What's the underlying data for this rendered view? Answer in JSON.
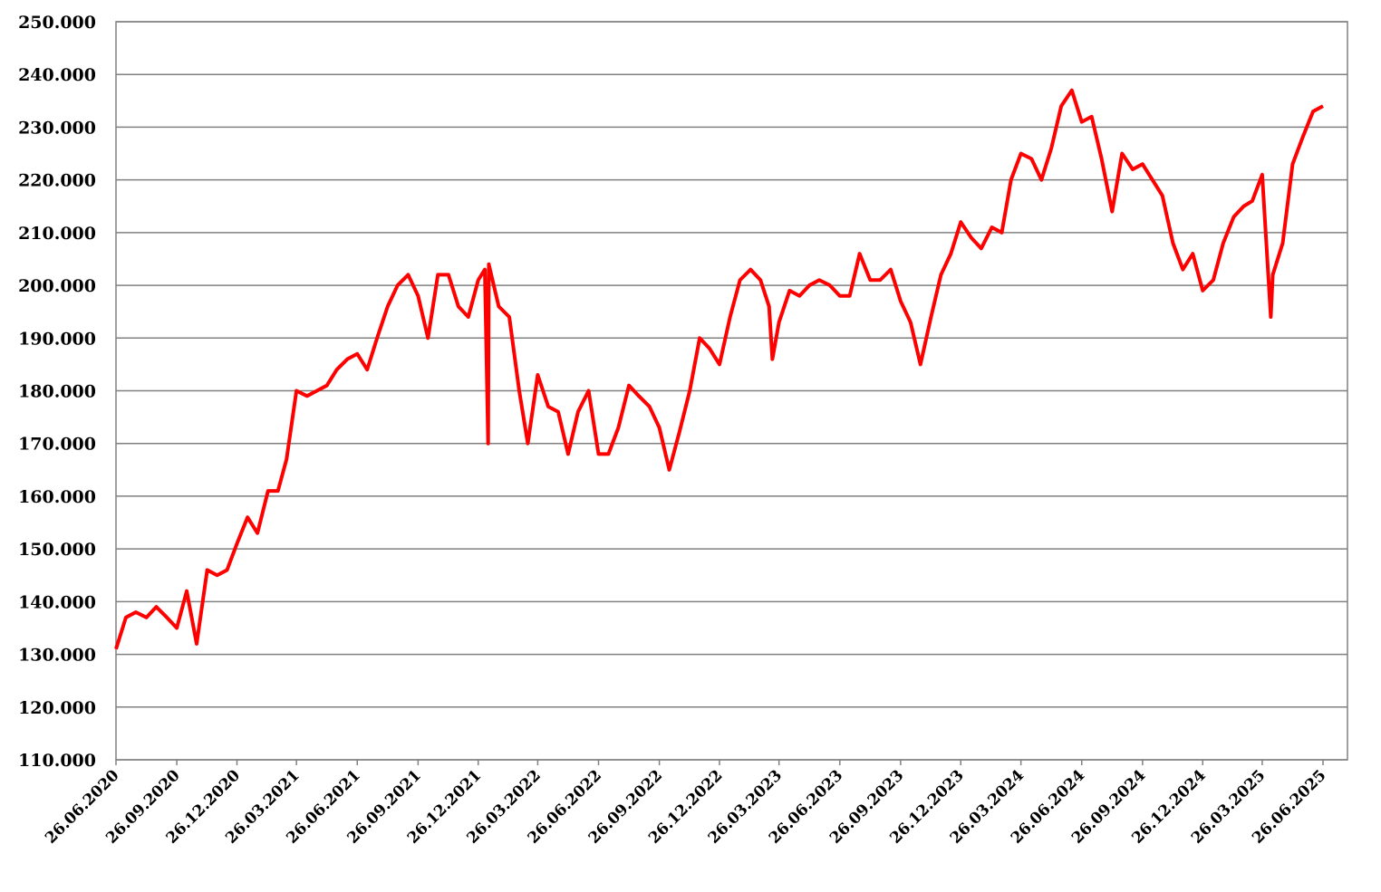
{
  "chart_data": {
    "type": "line",
    "x": [
      "26.06.2020",
      "11.07.2020",
      "26.07.2020",
      "11.08.2020",
      "26.08.2020",
      "11.09.2020",
      "26.09.2020",
      "11.10.2020",
      "26.10.2020",
      "11.11.2020",
      "26.11.2020",
      "11.12.2020",
      "26.12.2020",
      "11.01.2021",
      "26.01.2021",
      "11.02.2021",
      "26.02.2021",
      "11.03.2021",
      "26.03.2021",
      "11.04.2021",
      "26.04.2021",
      "11.05.2021",
      "26.05.2021",
      "11.06.2021",
      "26.06.2021",
      "11.07.2021",
      "26.07.2021",
      "11.08.2021",
      "26.08.2021",
      "11.09.2021",
      "26.09.2021",
      "11.10.2021",
      "26.10.2021",
      "11.11.2021",
      "26.11.2021",
      "11.12.2021",
      "26.12.2021",
      "05.01.2022",
      "10.01.2022",
      "11.01.2022",
      "26.01.2022",
      "11.02.2022",
      "26.02.2022",
      "11.03.2022",
      "26.03.2022",
      "11.04.2022",
      "26.04.2022",
      "11.05.2022",
      "26.05.2022",
      "11.06.2022",
      "26.06.2022",
      "11.07.2022",
      "26.07.2022",
      "11.08.2022",
      "26.08.2022",
      "11.09.2022",
      "26.09.2022",
      "11.10.2022",
      "26.10.2022",
      "11.11.2022",
      "26.11.2022",
      "11.12.2022",
      "26.12.2022",
      "11.01.2023",
      "26.01.2023",
      "11.02.2023",
      "26.02.2023",
      "11.03.2023",
      "16.03.2023",
      "26.03.2023",
      "11.04.2023",
      "26.04.2023",
      "11.05.2023",
      "26.05.2023",
      "11.06.2023",
      "26.06.2023",
      "11.07.2023",
      "26.07.2023",
      "11.08.2023",
      "26.08.2023",
      "11.09.2023",
      "26.09.2023",
      "11.10.2023",
      "26.10.2023",
      "11.11.2023",
      "26.11.2023",
      "11.12.2023",
      "26.12.2023",
      "11.01.2024",
      "26.01.2024",
      "11.02.2024",
      "26.02.2024",
      "11.03.2024",
      "26.03.2024",
      "11.04.2024",
      "26.04.2024",
      "11.05.2024",
      "26.05.2024",
      "11.06.2024",
      "26.06.2024",
      "11.07.2024",
      "26.07.2024",
      "11.08.2024",
      "26.08.2024",
      "11.09.2024",
      "26.09.2024",
      "11.10.2024",
      "26.10.2024",
      "11.11.2024",
      "26.11.2024",
      "11.12.2024",
      "26.12.2024",
      "11.01.2025",
      "26.01.2025",
      "11.02.2025",
      "26.02.2025",
      "11.03.2025",
      "26.03.2025",
      "08.04.2025",
      "11.04.2025",
      "26.04.2025",
      "11.05.2025",
      "26.05.2025",
      "11.06.2025",
      "26.06.2025"
    ],
    "series": [
      {
        "color": "#ff0000",
        "values": [
          131000,
          137000,
          138000,
          137000,
          139000,
          137000,
          135000,
          142000,
          132000,
          146000,
          145000,
          146000,
          151000,
          156000,
          153000,
          161000,
          161000,
          167000,
          180000,
          179000,
          180000,
          181000,
          184000,
          186000,
          187000,
          184000,
          190000,
          196000,
          200000,
          202000,
          198000,
          190000,
          202000,
          202000,
          196000,
          194000,
          201000,
          203000,
          170000,
          204000,
          196000,
          194000,
          180000,
          170000,
          183000,
          177000,
          176000,
          168000,
          176000,
          180000,
          168000,
          168000,
          173000,
          181000,
          179000,
          177000,
          173000,
          165000,
          172000,
          180000,
          190000,
          188000,
          185000,
          194000,
          201000,
          203000,
          201000,
          196000,
          186000,
          193000,
          199000,
          198000,
          200000,
          201000,
          200000,
          198000,
          198000,
          206000,
          201000,
          201000,
          203000,
          197000,
          193000,
          185000,
          194000,
          202000,
          206000,
          212000,
          209000,
          207000,
          211000,
          210000,
          220000,
          225000,
          224000,
          220000,
          226000,
          234000,
          237000,
          231000,
          232000,
          224000,
          214000,
          225000,
          222000,
          223000,
          220000,
          217000,
          208000,
          203000,
          206000,
          199000,
          201000,
          208000,
          213000,
          215000,
          216000,
          221000,
          194000,
          202000,
          208000,
          223000,
          228000,
          233000,
          234000
        ]
      }
    ],
    "xlim": [
      "26.06.2020",
      "02.08.2025"
    ],
    "xticks": [
      "26.06.2020",
      "26.09.2020",
      "26.12.2020",
      "26.03.2021",
      "26.06.2021",
      "26.09.2021",
      "26.12.2021",
      "26.03.2022",
      "26.06.2022",
      "26.09.2022",
      "26.12.2022",
      "26.03.2023",
      "26.06.2023",
      "26.09.2023",
      "26.12.2023",
      "26.03.2024",
      "26.06.2024",
      "26.09.2024",
      "26.12.2024",
      "26.03.2025",
      "26.06.2025"
    ],
    "ylim": [
      110000,
      250000
    ],
    "yticks": [
      {
        "value": 110000,
        "label": "110.000"
      },
      {
        "value": 120000,
        "label": "120.000"
      },
      {
        "value": 130000,
        "label": "130.000"
      },
      {
        "value": 140000,
        "label": "140.000"
      },
      {
        "value": 150000,
        "label": "150.000"
      },
      {
        "value": 160000,
        "label": "160.000"
      },
      {
        "value": 170000,
        "label": "170.000"
      },
      {
        "value": 180000,
        "label": "180.000"
      },
      {
        "value": 190000,
        "label": "190.000"
      },
      {
        "value": 200000,
        "label": "200.000"
      },
      {
        "value": 210000,
        "label": "210.000"
      },
      {
        "value": 220000,
        "label": "220.000"
      },
      {
        "value": 230000,
        "label": "230.000"
      },
      {
        "value": 240000,
        "label": "240.000"
      },
      {
        "value": 250000,
        "label": "250.000"
      }
    ],
    "grid": true
  }
}
